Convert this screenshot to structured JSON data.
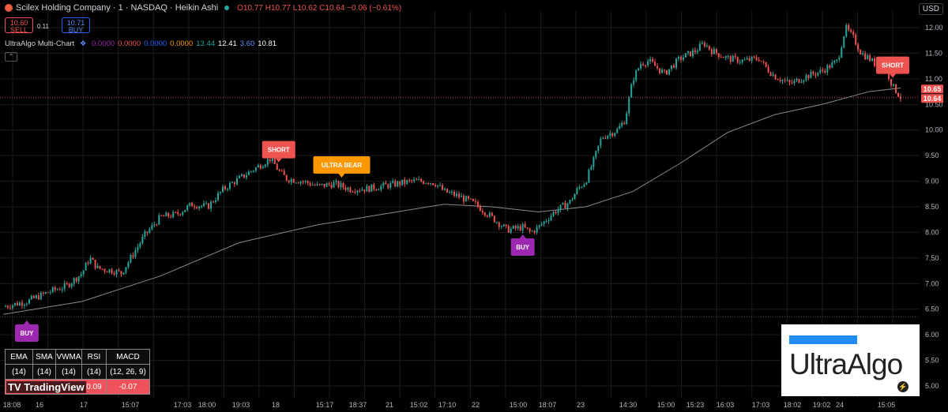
{
  "header": {
    "title": "Scilex Holding Company · 1 · NASDAQ · Heikin Ashi",
    "o": "O10.77",
    "h": "H10.77",
    "l": "L10.62",
    "c": "C10.64",
    "change": "−0.06 (−0.61%)",
    "currency": "USD"
  },
  "trade": {
    "sell_price": "10.60",
    "sell_label": "SELL",
    "spread": "0.11",
    "buy_price": "10.71",
    "buy_label": "BUY"
  },
  "indicator": {
    "name": "UltraAlgo Multi-Chart",
    "values": [
      {
        "text": "0.0000",
        "color": "#9c27b0"
      },
      {
        "text": "0.0000",
        "color": "#ef5350"
      },
      {
        "text": "0.0000",
        "color": "#2962ff"
      },
      {
        "text": "0.0000",
        "color": "#ff9800"
      },
      {
        "text": "13.44",
        "color": "#26a69a"
      },
      {
        "text": "12.41",
        "color": "#ffffff"
      },
      {
        "text": "3.60",
        "color": "#5b8cff"
      },
      {
        "text": "10.81",
        "color": "#ffffff"
      }
    ]
  },
  "stats_table": {
    "headers": [
      "EMA",
      "SMA",
      "VWMA",
      "RSI",
      "MACD"
    ],
    "params": [
      "(14)",
      "(14)",
      "(14)",
      "(14)",
      "(12, 26, 9)"
    ],
    "values": [
      "",
      "",
      "",
      "0.09",
      "-0.07"
    ]
  },
  "watermark": "TradingView",
  "brand": "UltraAlgo",
  "chart_data": {
    "type": "candlestick",
    "style": "Heikin Ashi",
    "ylim": [
      4.75,
      12.2
    ],
    "y_ticks": [
      "12.00",
      "11.50",
      "11.00",
      "10.50",
      "10.00",
      "9.50",
      "9.00",
      "8.50",
      "8.00",
      "7.50",
      "7.00",
      "6.50",
      "6.00",
      "5.50",
      "5.00"
    ],
    "x_ticks": [
      "18:08",
      "16",
      "17",
      "15:07",
      "17:03",
      "18:00",
      "19:03",
      "18",
      "15:17",
      "18:37",
      "21",
      "15:02",
      "17:10",
      "22",
      "15:00",
      "18:07",
      "23",
      "14:30",
      "15:00",
      "15:23",
      "16:03",
      "17:03",
      "18:02",
      "19:02",
      "24",
      "15:05"
    ],
    "price_path": [
      [
        0,
        6.55
      ],
      [
        3,
        6.65
      ],
      [
        6,
        6.85
      ],
      [
        8,
        6.95
      ],
      [
        10,
        7.2
      ],
      [
        11,
        7.5
      ],
      [
        12,
        7.3
      ],
      [
        14,
        7.25
      ],
      [
        15,
        7.2
      ],
      [
        16,
        7.45
      ],
      [
        18,
        7.95
      ],
      [
        20,
        8.3
      ],
      [
        22,
        8.35
      ],
      [
        24,
        8.55
      ],
      [
        26,
        8.5
      ],
      [
        28,
        8.85
      ],
      [
        30,
        9.05
      ],
      [
        33,
        9.35
      ],
      [
        34,
        9.45
      ],
      [
        35,
        9.2
      ],
      [
        36,
        9.05
      ],
      [
        38,
        9.0
      ],
      [
        40,
        8.9
      ],
      [
        42,
        8.95
      ],
      [
        44,
        8.85
      ],
      [
        46,
        8.85
      ],
      [
        48,
        8.9
      ],
      [
        50,
        8.95
      ],
      [
        52,
        9.0
      ],
      [
        54,
        9.0
      ],
      [
        55,
        8.95
      ],
      [
        56,
        8.8
      ],
      [
        58,
        8.7
      ],
      [
        60,
        8.55
      ],
      [
        62,
        8.3
      ],
      [
        64,
        8.05
      ],
      [
        66,
        8.1
      ],
      [
        67,
        8.0
      ],
      [
        68,
        8.1
      ],
      [
        70,
        8.4
      ],
      [
        72,
        8.6
      ],
      [
        73,
        8.85
      ],
      [
        74,
        9.0
      ],
      [
        75,
        9.4
      ],
      [
        76,
        9.85
      ],
      [
        78,
        10.0
      ],
      [
        79,
        10.2
      ],
      [
        80,
        11.0
      ],
      [
        81,
        11.3
      ],
      [
        82,
        11.35
      ],
      [
        84,
        11.1
      ],
      [
        86,
        11.4
      ],
      [
        88,
        11.55
      ],
      [
        89,
        11.7
      ],
      [
        90,
        11.55
      ],
      [
        92,
        11.4
      ],
      [
        94,
        11.35
      ],
      [
        96,
        11.4
      ],
      [
        97,
        11.2
      ],
      [
        98,
        11.05
      ],
      [
        100,
        10.9
      ],
      [
        102,
        11.05
      ],
      [
        104,
        11.15
      ],
      [
        106,
        11.35
      ],
      [
        107,
        12.0
      ],
      [
        108,
        11.8
      ],
      [
        109,
        11.5
      ],
      [
        110,
        11.4
      ],
      [
        111,
        11.25
      ],
      [
        112,
        11.25
      ],
      [
        113,
        10.85
      ],
      [
        114,
        10.64
      ]
    ],
    "moving_average": [
      [
        0,
        6.4
      ],
      [
        10,
        6.65
      ],
      [
        20,
        7.15
      ],
      [
        30,
        7.8
      ],
      [
        40,
        8.15
      ],
      [
        50,
        8.4
      ],
      [
        56,
        8.55
      ],
      [
        62,
        8.5
      ],
      [
        68,
        8.4
      ],
      [
        74,
        8.5
      ],
      [
        80,
        8.8
      ],
      [
        86,
        9.35
      ],
      [
        92,
        9.95
      ],
      [
        98,
        10.3
      ],
      [
        104,
        10.5
      ],
      [
        110,
        10.75
      ],
      [
        114,
        10.82
      ]
    ],
    "current_price": 10.64,
    "price_labels": [
      "10.65",
      "10.64"
    ],
    "support_line": 6.35,
    "signals": [
      {
        "label": "BUY",
        "x": 3,
        "color": "#9c27b0",
        "position": "below"
      },
      {
        "label": "SHORT",
        "x": 35,
        "color": "#ef5350",
        "position": "above"
      },
      {
        "label": "ULTRA BEAR",
        "x": 43,
        "color": "#ff9800",
        "position": "above"
      },
      {
        "label": "BUY",
        "x": 66,
        "color": "#9c27b0",
        "position": "below"
      },
      {
        "label": "SHORT",
        "x": 113,
        "color": "#ef5350",
        "position": "above"
      }
    ],
    "colors": {
      "up": "#26a69a",
      "down": "#ef5350",
      "ma": "#8a8a8a",
      "grid": "#1c1c1c"
    },
    "grid": true
  }
}
